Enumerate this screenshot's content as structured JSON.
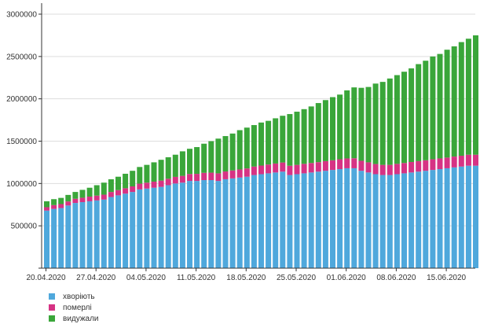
{
  "chart_data": {
    "type": "bar",
    "stacked": true,
    "ylim": [
      0,
      3000000
    ],
    "yticks": [
      0,
      500000,
      1000000,
      1500000,
      2000000,
      2500000,
      3000000
    ],
    "ytick_labels": [
      "",
      "500000",
      "1000000",
      "1500000",
      "2000000",
      "2500000",
      "3000000"
    ],
    "grid": true,
    "legend_position": "bottom-left",
    "x_label_dates": [
      "20.04.2020",
      "27.04.2020",
      "04.05.2020",
      "11.05.2020",
      "18.05.2020",
      "25.05.2020",
      "01.06.2020",
      "08.06.2020",
      "15.06.2020"
    ],
    "x_label_every": 7,
    "categories": [
      "20.04.2020",
      "21.04.2020",
      "22.04.2020",
      "23.04.2020",
      "24.04.2020",
      "25.04.2020",
      "26.04.2020",
      "27.04.2020",
      "28.04.2020",
      "29.04.2020",
      "30.04.2020",
      "01.05.2020",
      "02.05.2020",
      "03.05.2020",
      "04.05.2020",
      "05.05.2020",
      "06.05.2020",
      "07.05.2020",
      "08.05.2020",
      "09.05.2020",
      "10.05.2020",
      "11.05.2020",
      "12.05.2020",
      "13.05.2020",
      "14.05.2020",
      "15.05.2020",
      "16.05.2020",
      "17.05.2020",
      "18.05.2020",
      "19.05.2020",
      "20.05.2020",
      "21.05.2020",
      "22.05.2020",
      "23.05.2020",
      "24.05.2020",
      "25.05.2020",
      "26.05.2020",
      "27.05.2020",
      "28.05.2020",
      "29.05.2020",
      "30.05.2020",
      "31.05.2020",
      "01.06.2020",
      "02.06.2020",
      "03.06.2020",
      "04.06.2020",
      "05.06.2020",
      "06.06.2020",
      "07.06.2020",
      "08.06.2020",
      "09.06.2020",
      "10.06.2020",
      "11.06.2020",
      "12.06.2020",
      "13.06.2020",
      "14.06.2020",
      "15.06.2020",
      "16.06.2020",
      "17.06.2020",
      "18.06.2020",
      "19.06.2020"
    ],
    "series": [
      {
        "name": "хворіють",
        "color": "#4fa8dc",
        "values": [
          680000,
          700000,
          710000,
          740000,
          770000,
          780000,
          790000,
          800000,
          810000,
          840000,
          860000,
          880000,
          900000,
          930000,
          940000,
          950000,
          960000,
          980000,
          1000000,
          1010000,
          1030000,
          1030000,
          1040000,
          1040000,
          1030000,
          1050000,
          1060000,
          1070000,
          1080000,
          1100000,
          1110000,
          1120000,
          1130000,
          1140000,
          1100000,
          1110000,
          1120000,
          1130000,
          1140000,
          1150000,
          1160000,
          1170000,
          1180000,
          1180000,
          1150000,
          1130000,
          1110000,
          1100000,
          1100000,
          1110000,
          1120000,
          1130000,
          1140000,
          1150000,
          1160000,
          1170000,
          1180000,
          1190000,
          1200000,
          1210000,
          1210000
        ]
      },
      {
        "name": "померлі",
        "color": "#d63384",
        "values": [
          40000,
          45000,
          47000,
          48000,
          50000,
          52000,
          55000,
          57000,
          58000,
          60000,
          62000,
          64000,
          66000,
          68000,
          70000,
          72000,
          74000,
          76000,
          78000,
          80000,
          82000,
          84000,
          86000,
          88000,
          90000,
          92000,
          94000,
          96000,
          98000,
          100000,
          102000,
          104000,
          106000,
          108000,
          110000,
          110000,
          112000,
          112000,
          112000,
          114000,
          114000,
          116000,
          116000,
          118000,
          118000,
          120000,
          120000,
          120000,
          120000,
          122000,
          122000,
          124000,
          124000,
          124000,
          126000,
          126000,
          126000,
          128000,
          128000,
          130000,
          130000
        ]
      },
      {
        "name": "видужали",
        "color": "#3aa63a",
        "values": [
          70000,
          70000,
          73000,
          77000,
          80000,
          93000,
          105000,
          123000,
          142000,
          150000,
          158000,
          171000,
          184000,
          197000,
          210000,
          228000,
          246000,
          254000,
          262000,
          290000,
          298000,
          316000,
          344000,
          372000,
          410000,
          418000,
          436000,
          464000,
          482000,
          490000,
          508000,
          516000,
          534000,
          552000,
          610000,
          628000,
          646000,
          668000,
          698000,
          721000,
          746000,
          764000,
          804000,
          837000,
          862000,
          890000,
          950000,
          980000,
          1020000,
          1048000,
          1078000,
          1106000,
          1146000,
          1176000,
          1214000,
          1234000,
          1274000,
          1302000,
          1342000,
          1370000,
          1410000
        ]
      }
    ]
  }
}
